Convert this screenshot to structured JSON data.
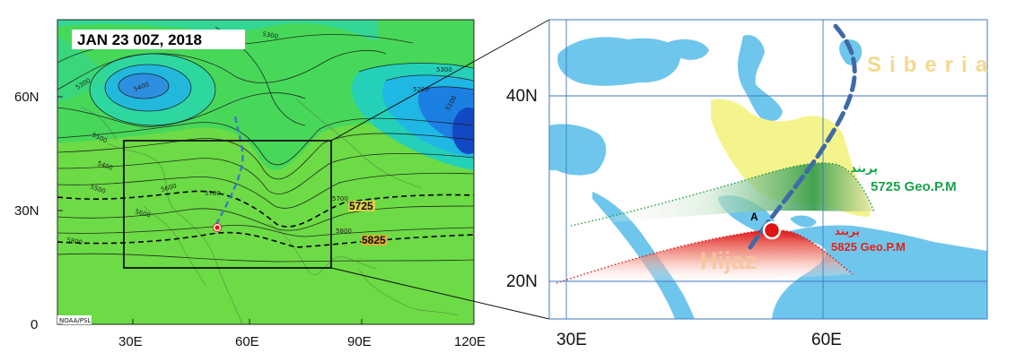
{
  "left_map": {
    "date_label": "JAN 23 00Z, 2018",
    "credit": "NOAA/PSL",
    "y_ticks": [
      "60N",
      "30N",
      "0"
    ],
    "x_ticks": [
      "30E",
      "60E",
      "90E",
      "120E"
    ],
    "contour_labels": [
      "5300",
      "5400",
      "5500",
      "5300",
      "5200",
      "5100",
      "5300",
      "5400",
      "5500",
      "5600",
      "5700",
      "5800",
      "5600",
      "5700",
      "5800"
    ],
    "dashed_labels": [
      "5725",
      "5825"
    ]
  },
  "right_map": {
    "y_ticks": [
      "40N",
      "20N"
    ],
    "x_ticks": [
      "30E",
      "60E"
    ],
    "siberia_label": "Siberia",
    "hijaz_label": "Hijaz",
    "point_label": "A",
    "green_fa": "پربند",
    "green_geo": "5725 Geo.P.M",
    "red_fa": "پربند",
    "red_geo": "5825 Geo.P.M"
  },
  "colors": {
    "sea": "#6fc6ec",
    "iran": "#f4f48c",
    "axis_dash": "#3e6aa6",
    "green_label": "#17a34a",
    "red_label": "#e2231a"
  }
}
